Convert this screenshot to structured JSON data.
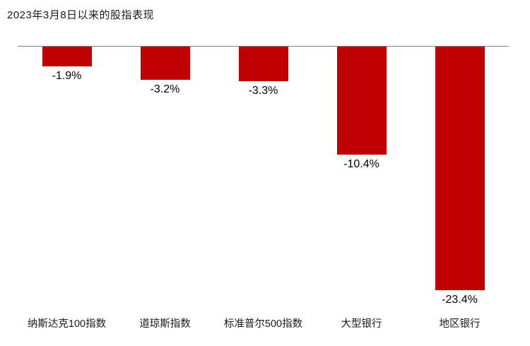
{
  "title": "2023年3月8日以来的股指表现",
  "chart_data": {
    "type": "bar",
    "title": "2023年3月8日以来的股指表现",
    "categories": [
      "纳斯达克100指数",
      "道琼斯指数",
      "标准普尔500指数",
      "大型银行",
      "地区银行"
    ],
    "values": [
      -1.9,
      -3.2,
      -3.3,
      -10.4,
      -23.4
    ],
    "data_labels": [
      "-1.9%",
      "-3.2%",
      "-3.3%",
      "-10.4%",
      "-23.4%"
    ],
    "xlabel": "",
    "ylabel": "",
    "ylim": [
      -25,
      0
    ],
    "bar_color": "#c00000",
    "label_color": "#000000",
    "axis_color": "#808080",
    "grid": false,
    "legend": false,
    "orientation": "vertical",
    "baseline_position": "top"
  }
}
